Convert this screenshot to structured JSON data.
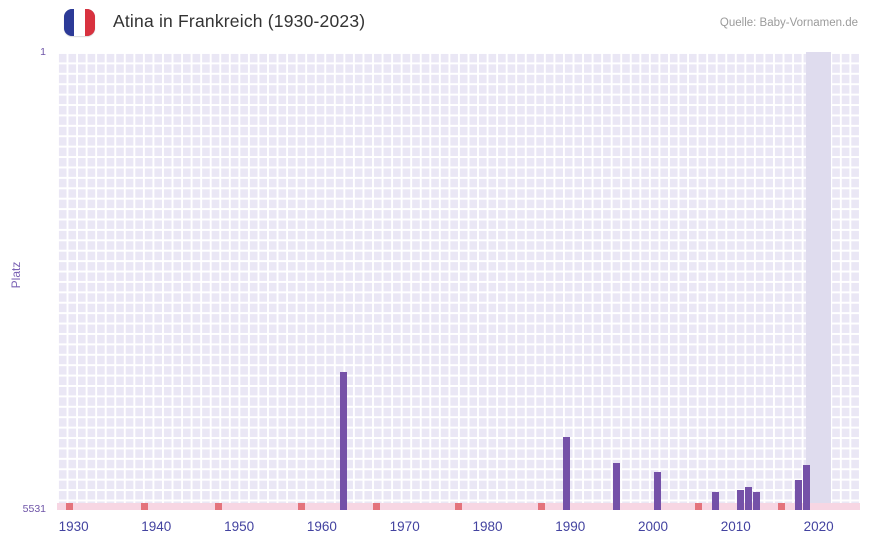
{
  "header": {
    "title": "Atina in Frankreich (1930-2023)",
    "source": "Quelle: Baby-Vornamen.de",
    "flag_icon": "france-flag"
  },
  "chart_data": {
    "type": "bar",
    "title": "Atina in Frankreich (1930-2023)",
    "subtitle": "",
    "xlabel": "",
    "ylabel": "Platz",
    "legend": false,
    "grid": true,
    "y_axis": {
      "min": 1,
      "max": 5531,
      "inverted": true,
      "top_label": "1",
      "bottom_label": "5531"
    },
    "x_axis": {
      "min_year": 1928,
      "max_year": 2025,
      "tick_labels": [
        "1930",
        "1940",
        "1950",
        "1960",
        "1970",
        "1980",
        "1990",
        "2000",
        "2010",
        "2020"
      ]
    },
    "bars": [
      {
        "year": 1962,
        "rank": 3865
      },
      {
        "year": 1989,
        "rank": 4650
      },
      {
        "year": 1995,
        "rank": 4960
      },
      {
        "year": 2000,
        "rank": 5070
      },
      {
        "year": 2007,
        "rank": 5310
      },
      {
        "year": 2010,
        "rank": 5290
      },
      {
        "year": 2011,
        "rank": 5250
      },
      {
        "year": 2012,
        "rank": 5310
      },
      {
        "year": 2017,
        "rank": 5170
      },
      {
        "year": 2018,
        "rank": 4990
      }
    ],
    "bottom_markers": {
      "years": [
        1929,
        1938,
        1947,
        1957,
        1966,
        1976,
        1986,
        2005,
        2015
      ]
    },
    "unranked_band_full_width": true,
    "highlight_band": {
      "from_year": 2018.5,
      "to_year": 2021.5
    },
    "colors": {
      "bar": "#7551a8",
      "unranked_band": "#f7d6e3",
      "bottom_marker": "#e4737c",
      "plot_background": "#eae7f5",
      "grid_line": "#ffffff",
      "highlight_band": "#dfdcee",
      "title_text": "#333333",
      "source_text": "#9b9b9b",
      "x_tick_text": "#4343a0",
      "y_tick_text": "#6f55a8",
      "y_label_text": "#7b62b4",
      "flag_blue": "#2c3a97",
      "flag_red": "#d8323f"
    }
  }
}
